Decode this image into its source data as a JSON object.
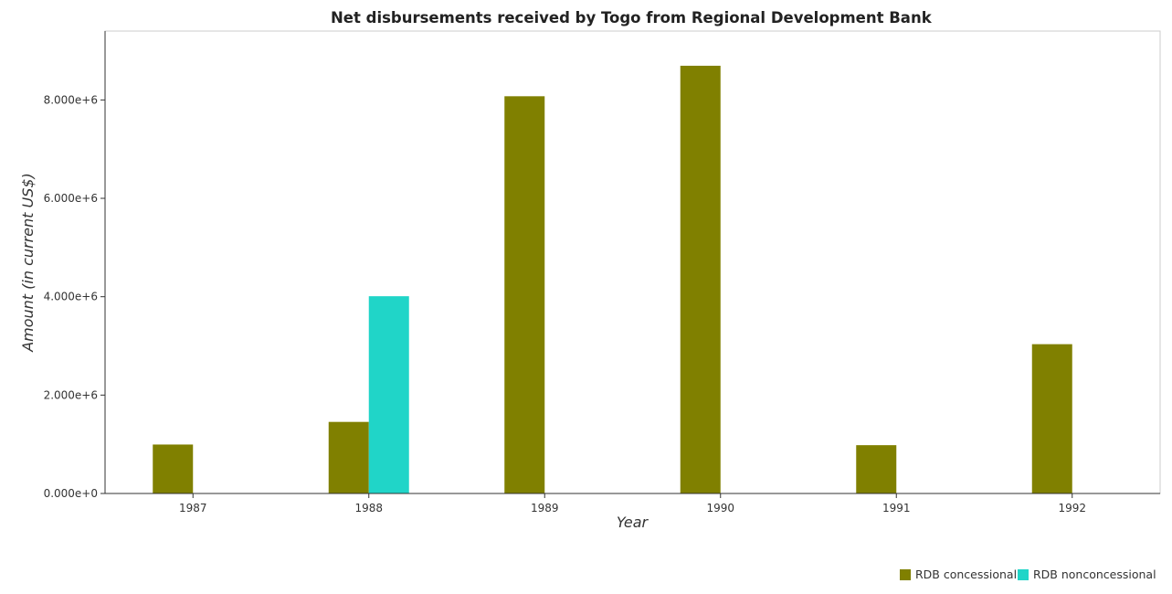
{
  "chart_data": {
    "type": "bar",
    "title": "Net disbursements received by Togo from Regional Development Bank",
    "xlabel": "Year",
    "ylabel": "Amount (in current US$)",
    "categories": [
      "1987",
      "1988",
      "1989",
      "1990",
      "1991",
      "1992"
    ],
    "series": [
      {
        "name": "RDB concessional",
        "color": "#808000",
        "values": [
          995000,
          1455000,
          8075000,
          8695000,
          982000,
          3035000
        ]
      },
      {
        "name": "RDB nonconcessional",
        "color": "#20d5c8",
        "values": [
          0,
          4010000,
          0,
          0,
          0,
          0
        ]
      }
    ],
    "ylim": [
      0,
      9400000
    ],
    "yticks": [
      0,
      2000000,
      4000000,
      6000000,
      8000000
    ],
    "ytick_labels": [
      "0.000e+0",
      "2.000e+6",
      "4.000e+6",
      "6.000e+6",
      "8.000e+6"
    ],
    "grid": false,
    "legend_position": "bottom-right"
  }
}
